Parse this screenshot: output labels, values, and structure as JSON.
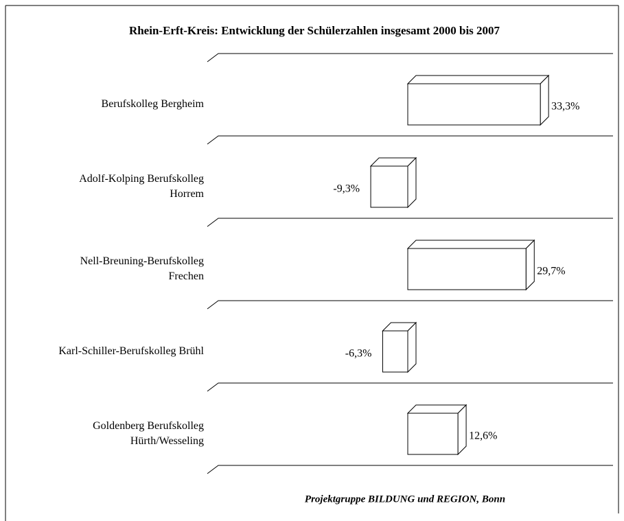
{
  "chart_data": {
    "type": "bar3d_horizontal",
    "title": "Rhein-Erft-Kreis: Entwicklung der Schülerzahlen insgesamt 2000 bis 2007",
    "categories": [
      "Berufskolleg Bergheim",
      "Adolf-Kolping Berufskolleg\nHorrem",
      "Nell-Breuning-Berufskolleg\nFrechen",
      "Karl-Schiller-Berufskolleg Brühl",
      "Goldenberg Berufskolleg\nHürth/Wesseling"
    ],
    "values": [
      33.3,
      -9.3,
      29.7,
      -6.3,
      12.6
    ],
    "value_labels": [
      "33,3%",
      "-9,3%",
      "29,7%",
      "-6,3%",
      "12,6%"
    ],
    "color": "#ffffff",
    "xlim": [
      -50,
      50
    ],
    "source": "Projektgruppe BILDUNG und REGION, Bonn"
  }
}
